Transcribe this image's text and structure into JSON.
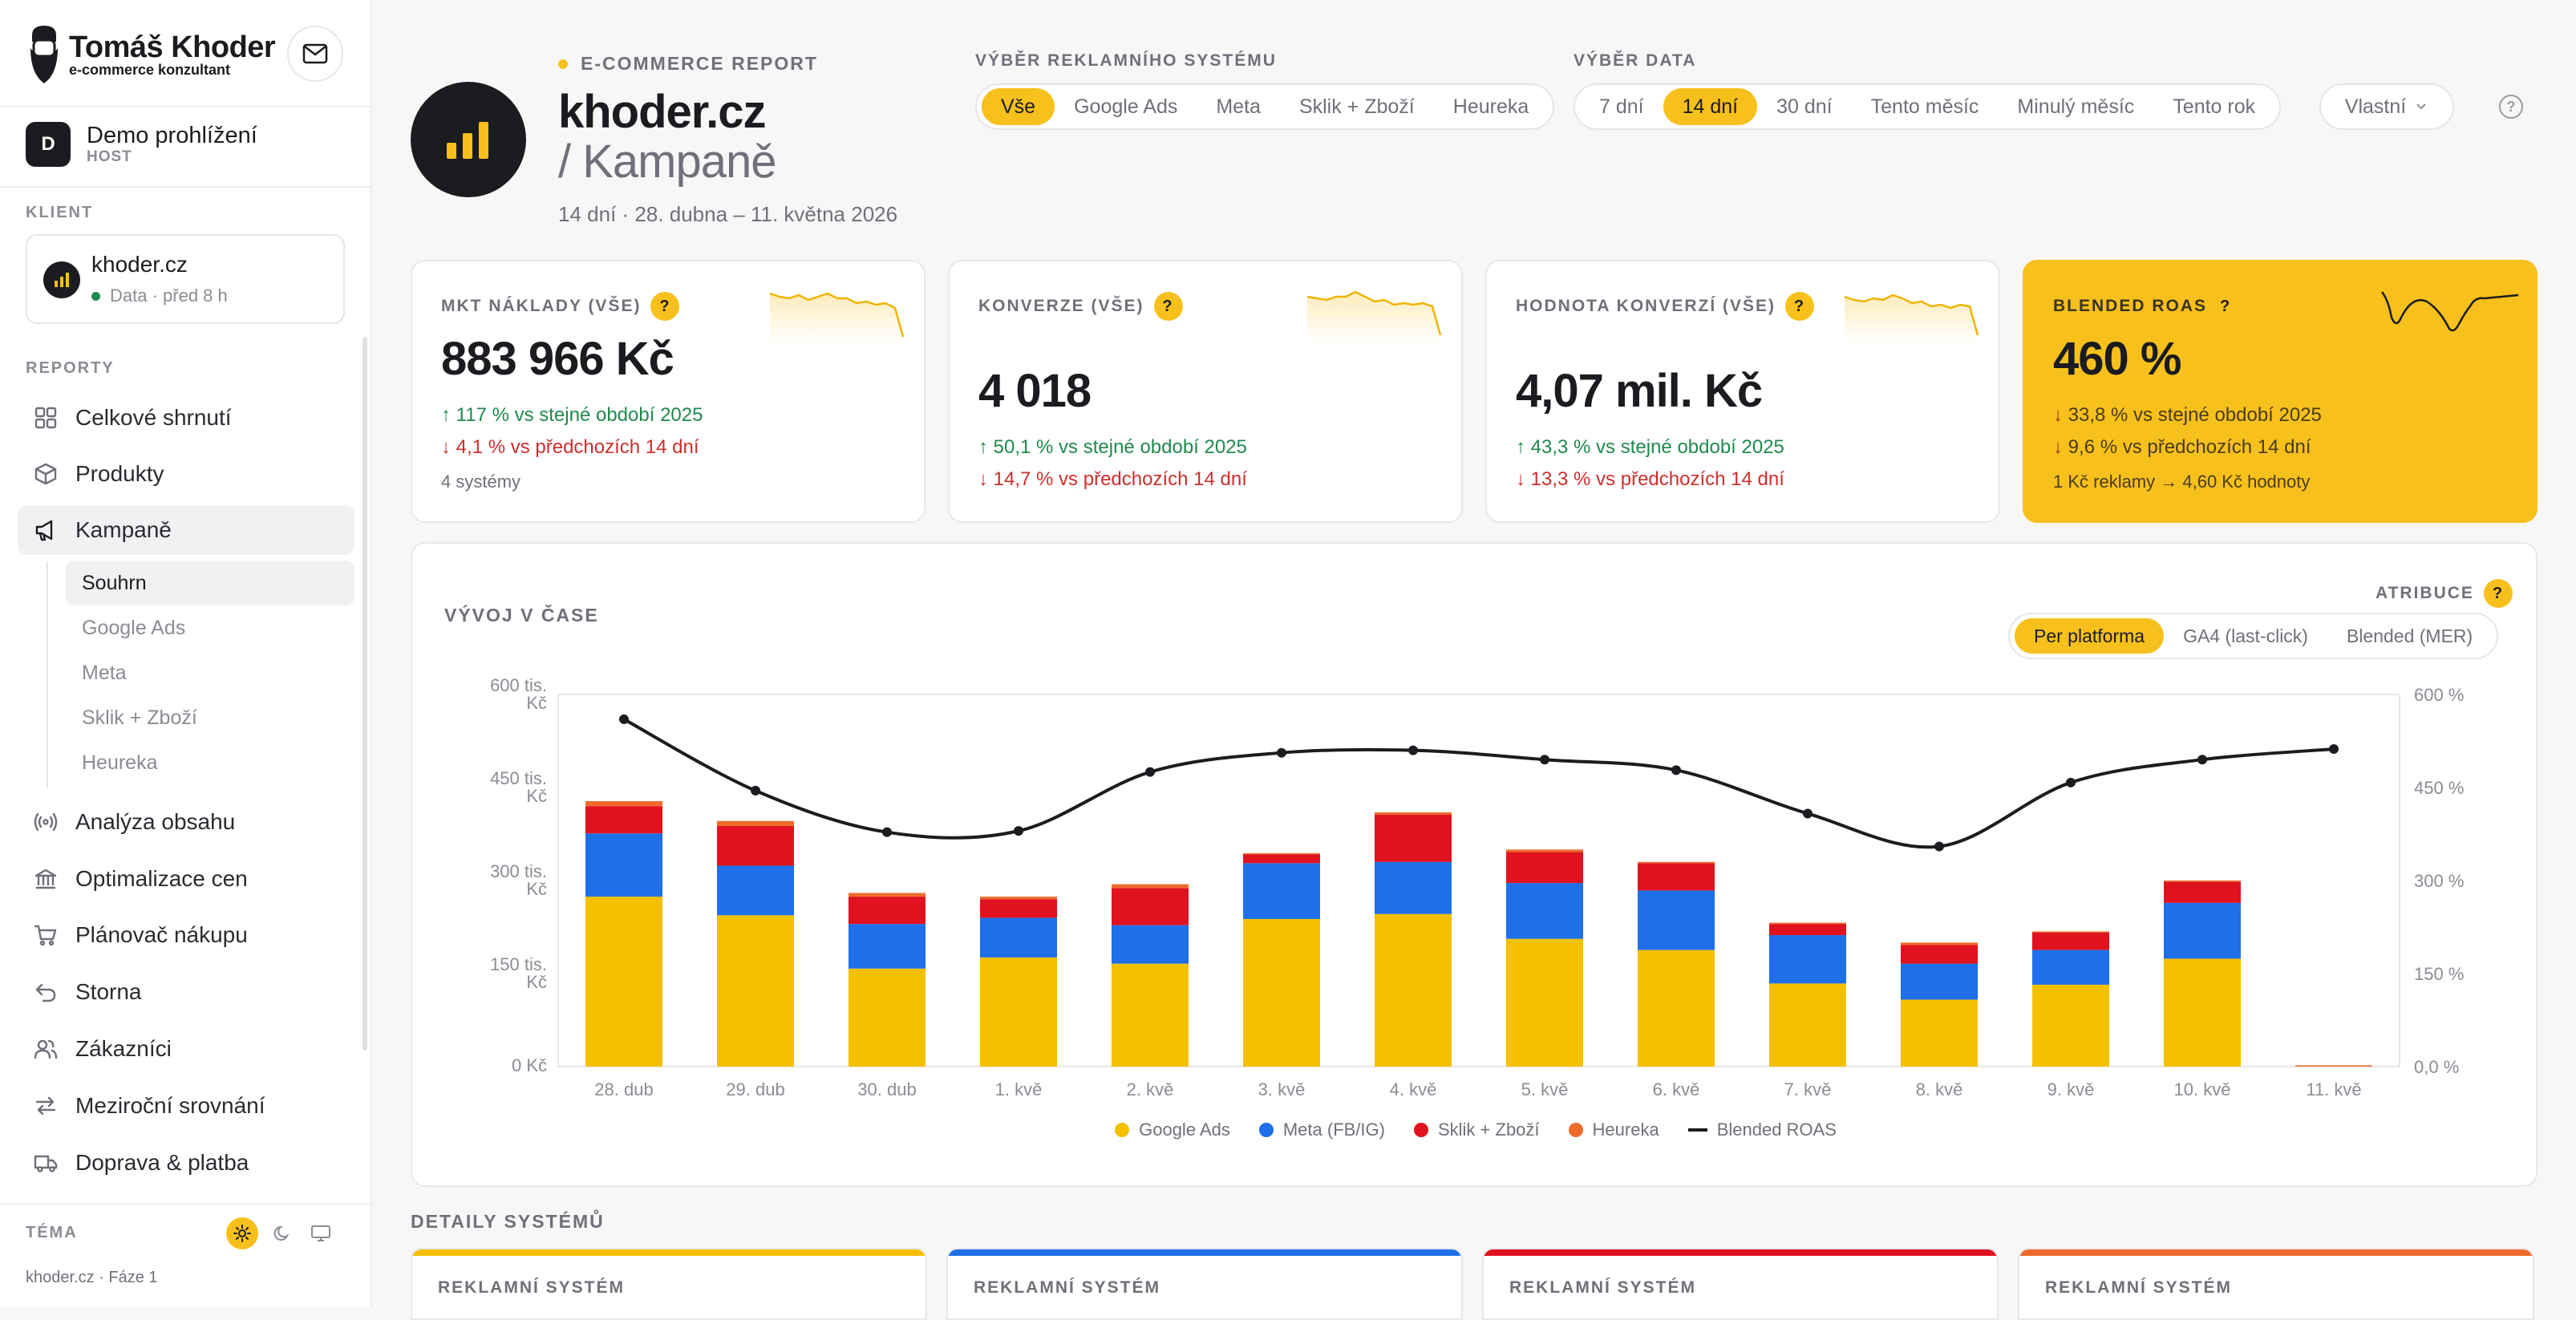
{
  "brand": {
    "name": "Tomáš Khoder",
    "tagline": "e-commerce konzultant",
    "icon": "bearded-man-logo"
  },
  "sidebar": {
    "user": {
      "initial": "D",
      "name": "Demo prohlížení",
      "role": "HOST"
    },
    "client_label": "KLIENT",
    "client": {
      "name": "khoder.cz",
      "status": "Data · před 8 h"
    },
    "reports_label": "REPORTY",
    "items": [
      {
        "label": "Celkové shrnutí",
        "icon": "grid-icon"
      },
      {
        "label": "Produkty",
        "icon": "box-icon"
      },
      {
        "label": "Kampaně",
        "icon": "megaphone-icon"
      },
      {
        "label": "Analýza obsahu",
        "icon": "broadcast-icon"
      },
      {
        "label": "Optimalizace cen",
        "icon": "bank-icon"
      },
      {
        "label": "Plánovač nákupu",
        "icon": "cart-icon"
      },
      {
        "label": "Storna",
        "icon": "undo-icon"
      },
      {
        "label": "Zákazníci",
        "icon": "users-icon"
      },
      {
        "label": "Meziroční srovnání",
        "icon": "swap-icon"
      },
      {
        "label": "Doprava & platba",
        "icon": "truck-icon"
      }
    ],
    "sub_items": [
      "Souhrn",
      "Google Ads",
      "Meta",
      "Sklik + Zboží",
      "Heureka"
    ],
    "theme_label": "TÉMA",
    "footer": "khoder.cz · Fáze 1"
  },
  "header": {
    "kicker": "E-COMMERCE REPORT",
    "title": "khoder.cz",
    "subtitle": "/ Kampaně",
    "date_range": "14 dní · 28. dubna – 11. května 2026",
    "ad_system_label": "VÝBĚR REKLAMNÍHO SYSTÉMU",
    "ad_systems": [
      "Vše",
      "Google Ads",
      "Meta",
      "Sklik + Zboží",
      "Heureka"
    ],
    "ad_system_selected": "Vše",
    "date_label": "VÝBĚR DATA",
    "date_options": [
      "7 dní",
      "14 dní",
      "30 dní",
      "Tento měsíc",
      "Minulý měsíc",
      "Tento rok"
    ],
    "date_selected": "14 dní",
    "custom_label": "Vlastní",
    "help": "?"
  },
  "kpis": [
    {
      "label": "MKT NÁKLADY (VŠE)",
      "value": "883 966 Kč",
      "line1": "117 % vs stejné období 2025",
      "line1_dir": "up",
      "line2": "4,1 % vs předchozích 14 dní",
      "line2_dir": "down",
      "foot": "4 systémy"
    },
    {
      "label": "KONVERZE (VŠE)",
      "value": "4 018",
      "line1": "50,1 % vs stejné období 2025",
      "line1_dir": "up",
      "line2": "14,7 % vs předchozích 14 dní",
      "line2_dir": "down",
      "foot": ""
    },
    {
      "label": "HODNOTA KONVERZÍ (VŠE)",
      "value": "4,07 mil. Kč",
      "line1": "43,3 % vs stejné období 2025",
      "line1_dir": "up",
      "line2": "13,3 % vs předchozích 14 dní",
      "line2_dir": "down",
      "foot": ""
    },
    {
      "label": "BLENDED ROAS",
      "value": "460 %",
      "line1": "33,8 % vs stejné období 2025",
      "line1_dir": "down",
      "line2": "9,6 % vs předchozích 14 dní",
      "line2_dir": "down",
      "foot": "1 Kč reklamy → 4,60 Kč hodnoty"
    }
  ],
  "chart": {
    "title": "VÝVOJ V ČASE",
    "attribution_label": "ATRIBUCE",
    "attribution_options": [
      "Per platforma",
      "GA4 (last-click)",
      "Blended (MER)"
    ],
    "attribution_selected": "Per platforma"
  },
  "chart_data": {
    "type": "bar",
    "stacked": true,
    "categories": [
      "28. dub",
      "29. dub",
      "30. dub",
      "1. kvě",
      "2. kvě",
      "3. kvě",
      "4. kvě",
      "5. kvě",
      "6. kvě",
      "7. kvě",
      "8. kvě",
      "9. kvě",
      "10. kvě",
      "11. kvě"
    ],
    "y_ticks": [
      "0 Kč",
      "150 tis. Kč",
      "300 tis. Kč",
      "450 tis. Kč",
      "600 tis. Kč"
    ],
    "y2_ticks": [
      "0,0 %",
      "150 %",
      "300 %",
      "450 %",
      "600 %"
    ],
    "ylim": [
      0,
      600000
    ],
    "y2lim": [
      0,
      600
    ],
    "series": [
      {
        "name": "Google Ads",
        "color": "#f5c000",
        "values": [
          274000,
          244000,
          158000,
          176000,
          166000,
          238000,
          246000,
          206000,
          188000,
          134000,
          108000,
          132000,
          174000,
          0
        ]
      },
      {
        "name": "Meta (FB/IG)",
        "color": "#1e6fe8",
        "values": [
          102000,
          80000,
          72000,
          64000,
          62000,
          90000,
          84000,
          90000,
          96000,
          78000,
          58000,
          56000,
          90000,
          0
        ]
      },
      {
        "name": "Sklik + Zboží",
        "color": "#e0121f",
        "values": [
          44000,
          64000,
          44000,
          30000,
          60000,
          14000,
          76000,
          50000,
          44000,
          18000,
          30000,
          28000,
          34000,
          0
        ]
      },
      {
        "name": "Heureka",
        "color": "#ee6b2c",
        "values": [
          8000,
          8000,
          6000,
          4000,
          6000,
          2000,
          4000,
          4000,
          2000,
          2000,
          4000,
          2000,
          2000,
          2000
        ]
      }
    ],
    "line_series": {
      "name": "Blended ROAS",
      "color": "#1b1c20",
      "axis": "right",
      "values": [
        560,
        445,
        378,
        380,
        475,
        506,
        510,
        495,
        478,
        408,
        355,
        458,
        495,
        512
      ]
    },
    "legend": [
      "Google Ads",
      "Meta (FB/IG)",
      "Sklik + Zboží",
      "Heureka",
      "Blended ROAS"
    ]
  },
  "details": {
    "title": "DETAILY SYSTÉMŮ",
    "cards": [
      {
        "label": "REKLAMNÍ SYSTÉM",
        "color": "#f5c000"
      },
      {
        "label": "REKLAMNÍ SYSTÉM",
        "color": "#1e6fe8"
      },
      {
        "label": "REKLAMNÍ SYSTÉM",
        "color": "#e0121f"
      },
      {
        "label": "REKLAMNÍ SYSTÉM",
        "color": "#ee6b2c"
      }
    ]
  }
}
